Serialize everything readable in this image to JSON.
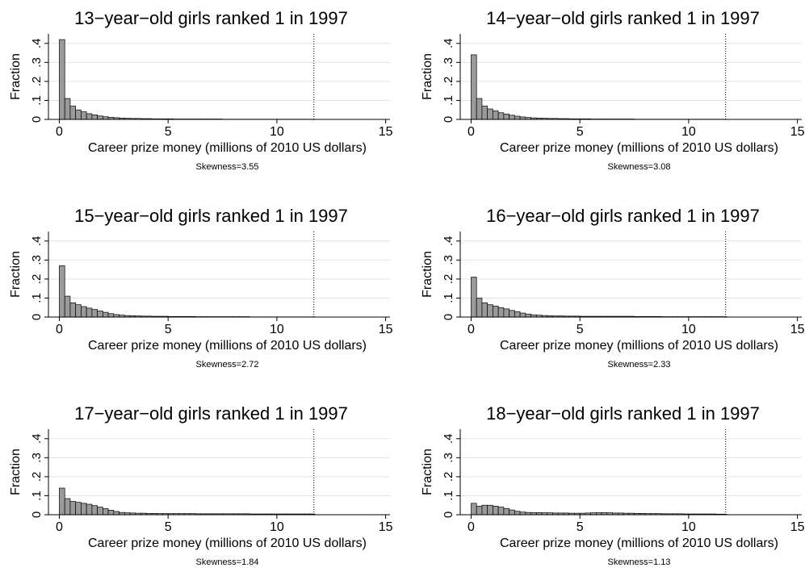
{
  "chart_data": [
    {
      "type": "histogram",
      "title": "13−year−old girls ranked 1 in 1997",
      "x_label": "Career prize money (millions of 2010 US dollars)",
      "y_label": "Fraction",
      "note": "Skewness=3.55",
      "color": "#9a9a9a",
      "grid": true,
      "reference_line": 11.7,
      "bins": [
        0,
        0.25,
        0.5,
        0.75,
        1,
        1.25,
        1.5,
        1.75,
        2,
        2.25,
        2.5,
        2.75,
        3,
        3.25,
        3.5,
        3.75,
        4,
        4.25,
        4.5,
        4.75,
        5,
        5.25,
        5.5,
        5.75,
        6,
        6.25,
        6.5,
        6.75,
        7,
        7.25,
        7.5,
        7.75,
        8,
        8.25,
        8.5,
        8.75,
        9,
        9.25,
        9.5,
        9.75,
        10,
        10.25,
        10.5,
        10.75,
        11,
        11.25,
        11.5,
        11.75
      ],
      "values": [
        0.42,
        0.11,
        0.07,
        0.05,
        0.04,
        0.03,
        0.024,
        0.018,
        0.014,
        0.011,
        0.009,
        0.007,
        0.006,
        0.005,
        0.005,
        0.004,
        0.004,
        0.003,
        0.003,
        0.003,
        0.003,
        0.002,
        0.002,
        0.002,
        0.002,
        0.002,
        0.002,
        0.002,
        0.002,
        0.002,
        0.001,
        0.001,
        0.001,
        0.001,
        0.001,
        0.001,
        0.001,
        0.001,
        0.001,
        0.001,
        0.001,
        0.001,
        0.001,
        0.001,
        0.001,
        0.001,
        0.001
      ],
      "xlim": [
        -0.5,
        15.2
      ],
      "xticks": [
        0,
        5,
        10,
        15
      ],
      "ylim": [
        0,
        0.45
      ],
      "yticks": [
        0,
        {
          "value": 0.1,
          "label": ".1"
        },
        {
          "value": 0.2,
          "label": ".2"
        },
        {
          "value": 0.3,
          "label": ".3"
        },
        {
          "value": 0.4,
          "label": ".4"
        }
      ]
    },
    {
      "type": "histogram",
      "title": "14−year−old girls ranked 1 in 1997",
      "x_label": "Career prize money (millions of 2010 US dollars)",
      "y_label": "Fraction",
      "note": "Skewness=3.08",
      "color": "#9a9a9a",
      "grid": true,
      "reference_line": 11.7,
      "bins": [
        0,
        0.25,
        0.5,
        0.75,
        1,
        1.25,
        1.5,
        1.75,
        2,
        2.25,
        2.5,
        2.75,
        3,
        3.25,
        3.5,
        3.75,
        4,
        4.25,
        4.5,
        4.75,
        5,
        5.25,
        5.5,
        5.75,
        6,
        6.25,
        6.5,
        6.75,
        7,
        7.25,
        7.5,
        7.75,
        8,
        8.25,
        8.5,
        8.75,
        9,
        9.25,
        9.5,
        9.75,
        10,
        10.25,
        10.5,
        10.75,
        11,
        11.25,
        11.5,
        11.75
      ],
      "values": [
        0.34,
        0.11,
        0.07,
        0.055,
        0.045,
        0.035,
        0.028,
        0.022,
        0.017,
        0.013,
        0.01,
        0.008,
        0.007,
        0.006,
        0.005,
        0.005,
        0.004,
        0.004,
        0.003,
        0.003,
        0.003,
        0.003,
        0.002,
        0.002,
        0.002,
        0.002,
        0.002,
        0.002,
        0.002,
        0.002,
        0.001,
        0.001,
        0.001,
        0.001,
        0.001,
        0.001,
        0.001,
        0.001,
        0.001,
        0.001,
        0.001,
        0.001,
        0.001,
        0.001,
        0.001,
        0.001,
        0.001
      ],
      "xlim": [
        -0.5,
        15.2
      ],
      "xticks": [
        0,
        5,
        10,
        15
      ],
      "ylim": [
        0,
        0.45
      ],
      "yticks": [
        0,
        {
          "value": 0.1,
          "label": ".1"
        },
        {
          "value": 0.2,
          "label": ".2"
        },
        {
          "value": 0.3,
          "label": ".3"
        },
        {
          "value": 0.4,
          "label": ".4"
        }
      ]
    },
    {
      "type": "histogram",
      "title": "15−year−old girls ranked 1 in 1997",
      "x_label": "Career prize money (millions of 2010 US dollars)",
      "y_label": "Fraction",
      "note": "Skewness=2.72",
      "color": "#9a9a9a",
      "grid": true,
      "reference_line": 11.7,
      "bins": [
        0,
        0.25,
        0.5,
        0.75,
        1,
        1.25,
        1.5,
        1.75,
        2,
        2.25,
        2.5,
        2.75,
        3,
        3.25,
        3.5,
        3.75,
        4,
        4.25,
        4.5,
        4.75,
        5,
        5.25,
        5.5,
        5.75,
        6,
        6.25,
        6.5,
        6.75,
        7,
        7.25,
        7.5,
        7.75,
        8,
        8.25,
        8.5,
        8.75,
        9,
        9.25,
        9.5,
        9.75,
        10,
        10.25,
        10.5,
        10.75,
        11,
        11.25,
        11.5,
        11.75
      ],
      "values": [
        0.27,
        0.11,
        0.075,
        0.065,
        0.055,
        0.047,
        0.04,
        0.032,
        0.025,
        0.018,
        0.013,
        0.01,
        0.008,
        0.007,
        0.006,
        0.005,
        0.005,
        0.004,
        0.004,
        0.004,
        0.003,
        0.003,
        0.003,
        0.003,
        0.003,
        0.002,
        0.002,
        0.002,
        0.002,
        0.002,
        0.002,
        0.002,
        0.002,
        0.002,
        0.002,
        0.001,
        0.001,
        0.001,
        0.001,
        0.001,
        0.001,
        0.001,
        0.001,
        0.001,
        0.001,
        0.001,
        0.001
      ],
      "xlim": [
        -0.5,
        15.2
      ],
      "xticks": [
        0,
        5,
        10,
        15
      ],
      "ylim": [
        0,
        0.45
      ],
      "yticks": [
        0,
        {
          "value": 0.1,
          "label": ".1"
        },
        {
          "value": 0.2,
          "label": ".2"
        },
        {
          "value": 0.3,
          "label": ".3"
        },
        {
          "value": 0.4,
          "label": ".4"
        }
      ]
    },
    {
      "type": "histogram",
      "title": "16−year−old girls ranked 1 in 1997",
      "x_label": "Career prize money (millions of 2010 US dollars)",
      "y_label": "Fraction",
      "note": "Skewness=2.33",
      "color": "#9a9a9a",
      "grid": true,
      "reference_line": 11.7,
      "bins": [
        0,
        0.25,
        0.5,
        0.75,
        1,
        1.25,
        1.5,
        1.75,
        2,
        2.25,
        2.5,
        2.75,
        3,
        3.25,
        3.5,
        3.75,
        4,
        4.25,
        4.5,
        4.75,
        5,
        5.25,
        5.5,
        5.75,
        6,
        6.25,
        6.5,
        6.75,
        7,
        7.25,
        7.5,
        7.75,
        8,
        8.25,
        8.5,
        8.75,
        9,
        9.25,
        9.5,
        9.75,
        10,
        10.25,
        10.5,
        10.75,
        11,
        11.25,
        11.5,
        11.75
      ],
      "values": [
        0.21,
        0.1,
        0.075,
        0.065,
        0.058,
        0.05,
        0.043,
        0.035,
        0.028,
        0.021,
        0.016,
        0.012,
        0.01,
        0.008,
        0.007,
        0.006,
        0.006,
        0.005,
        0.005,
        0.005,
        0.004,
        0.004,
        0.004,
        0.004,
        0.004,
        0.004,
        0.004,
        0.004,
        0.004,
        0.004,
        0.003,
        0.003,
        0.003,
        0.003,
        0.003,
        0.002,
        0.002,
        0.002,
        0.002,
        0.002,
        0.002,
        0.002,
        0.002,
        0.002,
        0.002,
        0.002,
        0.002
      ],
      "xlim": [
        -0.5,
        15.2
      ],
      "xticks": [
        0,
        5,
        10,
        15
      ],
      "ylim": [
        0,
        0.45
      ],
      "yticks": [
        0,
        {
          "value": 0.1,
          "label": ".1"
        },
        {
          "value": 0.2,
          "label": ".2"
        },
        {
          "value": 0.3,
          "label": ".3"
        },
        {
          "value": 0.4,
          "label": ".4"
        }
      ]
    },
    {
      "type": "histogram",
      "title": "17−year−old girls ranked 1 in 1997",
      "x_label": "Career prize money (millions of 2010 US dollars)",
      "y_label": "Fraction",
      "note": "Skewness=1.84",
      "color": "#9a9a9a",
      "grid": true,
      "reference_line": 11.7,
      "bins": [
        0,
        0.25,
        0.5,
        0.75,
        1,
        1.25,
        1.5,
        1.75,
        2,
        2.25,
        2.5,
        2.75,
        3,
        3.25,
        3.5,
        3.75,
        4,
        4.25,
        4.5,
        4.75,
        5,
        5.25,
        5.5,
        5.75,
        6,
        6.25,
        6.5,
        6.75,
        7,
        7.25,
        7.5,
        7.75,
        8,
        8.25,
        8.5,
        8.75,
        9,
        9.25,
        9.5,
        9.75,
        10,
        10.25,
        10.5,
        10.75,
        11,
        11.25,
        11.5,
        11.75
      ],
      "values": [
        0.14,
        0.085,
        0.07,
        0.065,
        0.06,
        0.055,
        0.048,
        0.04,
        0.032,
        0.024,
        0.017,
        0.012,
        0.01,
        0.009,
        0.008,
        0.008,
        0.007,
        0.007,
        0.006,
        0.006,
        0.006,
        0.006,
        0.006,
        0.006,
        0.006,
        0.005,
        0.005,
        0.005,
        0.005,
        0.005,
        0.005,
        0.005,
        0.005,
        0.005,
        0.005,
        0.004,
        0.004,
        0.004,
        0.004,
        0.004,
        0.004,
        0.004,
        0.004,
        0.004,
        0.004,
        0.004,
        0.004
      ],
      "xlim": [
        -0.5,
        15.2
      ],
      "xticks": [
        0,
        5,
        10,
        15
      ],
      "ylim": [
        0,
        0.45
      ],
      "yticks": [
        0,
        {
          "value": 0.1,
          "label": ".1"
        },
        {
          "value": 0.2,
          "label": ".2"
        },
        {
          "value": 0.3,
          "label": ".3"
        },
        {
          "value": 0.4,
          "label": ".4"
        }
      ]
    },
    {
      "type": "histogram",
      "title": "18−year−old girls ranked 1 in 1997",
      "x_label": "Career prize money (millions of 2010 US dollars)",
      "y_label": "Fraction",
      "note": "Skewness=1.13",
      "color": "#9a9a9a",
      "grid": true,
      "reference_line": 11.7,
      "bins": [
        0,
        0.25,
        0.5,
        0.75,
        1,
        1.25,
        1.5,
        1.75,
        2,
        2.25,
        2.5,
        2.75,
        3,
        3.25,
        3.5,
        3.75,
        4,
        4.25,
        4.5,
        4.75,
        5,
        5.25,
        5.5,
        5.75,
        6,
        6.25,
        6.5,
        6.75,
        7,
        7.25,
        7.5,
        7.75,
        8,
        8.25,
        8.5,
        8.75,
        9,
        9.25,
        9.5,
        9.75,
        10,
        10.25,
        10.5,
        10.75,
        11,
        11.25,
        11.5,
        11.75
      ],
      "values": [
        0.06,
        0.045,
        0.05,
        0.05,
        0.045,
        0.04,
        0.033,
        0.025,
        0.018,
        0.014,
        0.012,
        0.011,
        0.011,
        0.01,
        0.01,
        0.009,
        0.009,
        0.009,
        0.008,
        0.008,
        0.008,
        0.009,
        0.01,
        0.011,
        0.011,
        0.01,
        0.009,
        0.009,
        0.008,
        0.008,
        0.007,
        0.007,
        0.006,
        0.006,
        0.006,
        0.005,
        0.005,
        0.005,
        0.005,
        0.004,
        0.004,
        0.004,
        0.004,
        0.004,
        0.004,
        0.003,
        0.003
      ],
      "xlim": [
        -0.5,
        15.2
      ],
      "xticks": [
        0,
        5,
        10,
        15
      ],
      "ylim": [
        0,
        0.45
      ],
      "yticks": [
        0,
        {
          "value": 0.1,
          "label": ".1"
        },
        {
          "value": 0.2,
          "label": ".2"
        },
        {
          "value": 0.3,
          "label": ".3"
        },
        {
          "value": 0.4,
          "label": ".4"
        }
      ]
    }
  ]
}
